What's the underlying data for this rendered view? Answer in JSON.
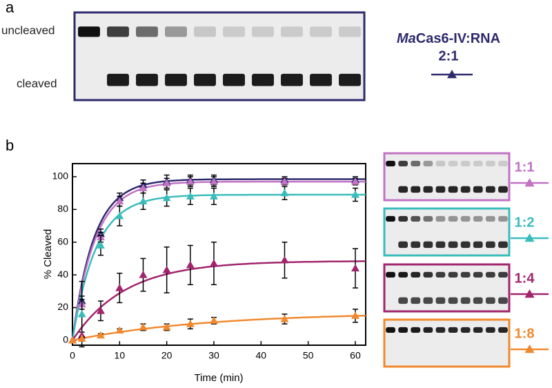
{
  "panel_a": {
    "label": "a",
    "bands": [
      "uncleaved",
      "cleaved"
    ]
  },
  "panel_b": {
    "label": "b"
  },
  "chart_data": {
    "type": "line",
    "x_label": "Time (min)",
    "y_label": "% Cleaved",
    "legend_title": {
      "italic": "Ma",
      "rest": "Cas6-IV:RNA"
    },
    "x": [
      0,
      2,
      6,
      10,
      15,
      20,
      25,
      30,
      45,
      60
    ],
    "xlim": [
      0,
      62.2
    ],
    "xticks": [
      0,
      10,
      20,
      30,
      40,
      50,
      60
    ],
    "ylim": [
      -3,
      108
    ],
    "yticks": [
      0,
      20,
      40,
      60,
      80,
      100
    ],
    "series": [
      {
        "name": "2:1",
        "color": "#2e2a6e",
        "values": [
          0,
          24,
          65,
          87,
          95,
          97,
          98,
          98,
          98,
          98
        ],
        "errors": [
          0,
          3,
          3,
          3,
          3,
          4,
          3,
          3,
          2,
          2
        ],
        "fit": {
          "plateau": 98.5,
          "rate": 0.22
        }
      },
      {
        "name": "1:1",
        "color": "#c173c4",
        "values": [
          0,
          22,
          63,
          85,
          93,
          96,
          97,
          97,
          97,
          97
        ],
        "errors": [
          0,
          3,
          3,
          3,
          3,
          3,
          3,
          3,
          2,
          2
        ],
        "fit": {
          "plateau": 97,
          "rate": 0.21
        }
      },
      {
        "name": "1:2",
        "color": "#3bbcbc",
        "values": [
          0,
          16,
          58,
          76,
          85,
          87,
          88,
          88,
          90,
          89
        ],
        "errors": [
          0,
          20,
          6,
          6,
          5,
          5,
          5,
          5,
          4,
          4
        ],
        "fit": {
          "plateau": 89,
          "rate": 0.2
        }
      },
      {
        "name": "1:4",
        "color": "#a1246c",
        "values": [
          0,
          3,
          18,
          32,
          40,
          43,
          46,
          47,
          49,
          44
        ],
        "errors": [
          0,
          2,
          6,
          9,
          10,
          14,
          12,
          13,
          11,
          12
        ],
        "fit": {
          "plateau": 48.5,
          "rate": 0.09
        }
      },
      {
        "name": "1:8",
        "color": "#f0892e",
        "values": [
          0,
          1,
          3,
          6,
          8,
          8,
          10,
          12,
          13,
          15
        ],
        "errors": [
          0,
          1,
          1,
          1,
          2,
          2,
          3,
          2,
          3,
          4
        ],
        "fit": {
          "plateau": 17,
          "rate": 0.035
        }
      }
    ]
  }
}
